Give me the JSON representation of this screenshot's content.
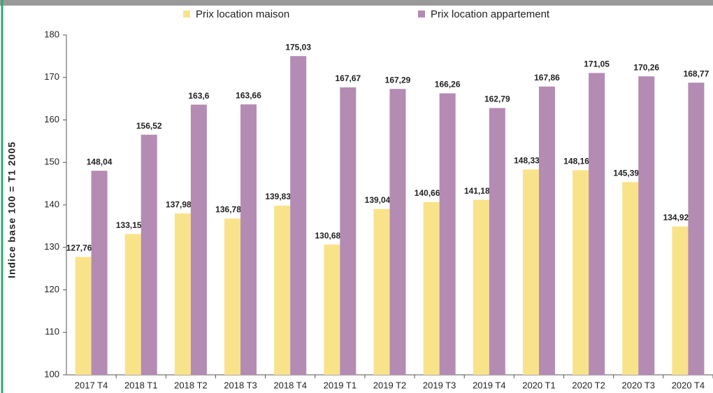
{
  "chart_data": {
    "type": "bar",
    "y_label": "Indice base 100 = T1 2005",
    "categories": [
      "2017 T4",
      "2018 T1",
      "2018 T2",
      "2018 T3",
      "2018 T4",
      "2019 T1",
      "2019 T2",
      "2019 T3",
      "2019 T4",
      "2020 T1",
      "2020 T2",
      "2020 T3",
      "2020 T4"
    ],
    "series": [
      {
        "name": "Prix location maison",
        "color": "#f9e38a",
        "values": [
          127.76,
          133.15,
          137.98,
          136.78,
          139.83,
          130.68,
          139.04,
          140.66,
          141.18,
          148.33,
          148.16,
          145.39,
          134.92
        ],
        "value_labels": [
          "127,76",
          "133,15",
          "137,98",
          "136,78",
          "139,83",
          "130,68",
          "139,04",
          "140,66",
          "141,18",
          "148,33",
          "148,16",
          "145,39",
          "134,92"
        ]
      },
      {
        "name": "Prix location appartement",
        "color": "#b48bb3",
        "values": [
          148.04,
          156.52,
          163.6,
          163.66,
          175.03,
          167.67,
          167.29,
          166.26,
          162.79,
          167.86,
          171.05,
          170.26,
          168.77
        ],
        "value_labels": [
          "148,04",
          "156,52",
          "163,6",
          "163,66",
          "175,03",
          "167,67",
          "167,29",
          "166,26",
          "162,79",
          "167,86",
          "171,05",
          "170,26",
          "168,77"
        ]
      }
    ],
    "ylim": [
      100,
      180
    ],
    "yticks": [
      100,
      110,
      120,
      130,
      140,
      150,
      160,
      170,
      180
    ],
    "grid": false,
    "legend": "top"
  }
}
